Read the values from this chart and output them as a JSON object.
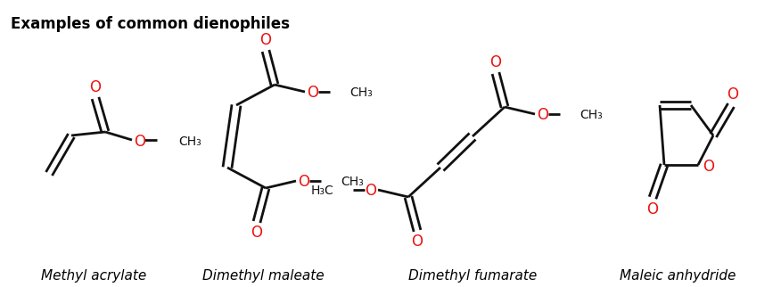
{
  "title": "Examples of common dienophiles",
  "title_fontsize": 12,
  "labels": [
    "Methyl acrylate",
    "Dimethyl maleate",
    "Dimethyl fumarate",
    "Maleic anhydride"
  ],
  "label_fontsize": 11,
  "background": "#ffffff",
  "bond_color": "#111111",
  "oxygen_color": "#ee1111",
  "bond_lw": 2.0
}
